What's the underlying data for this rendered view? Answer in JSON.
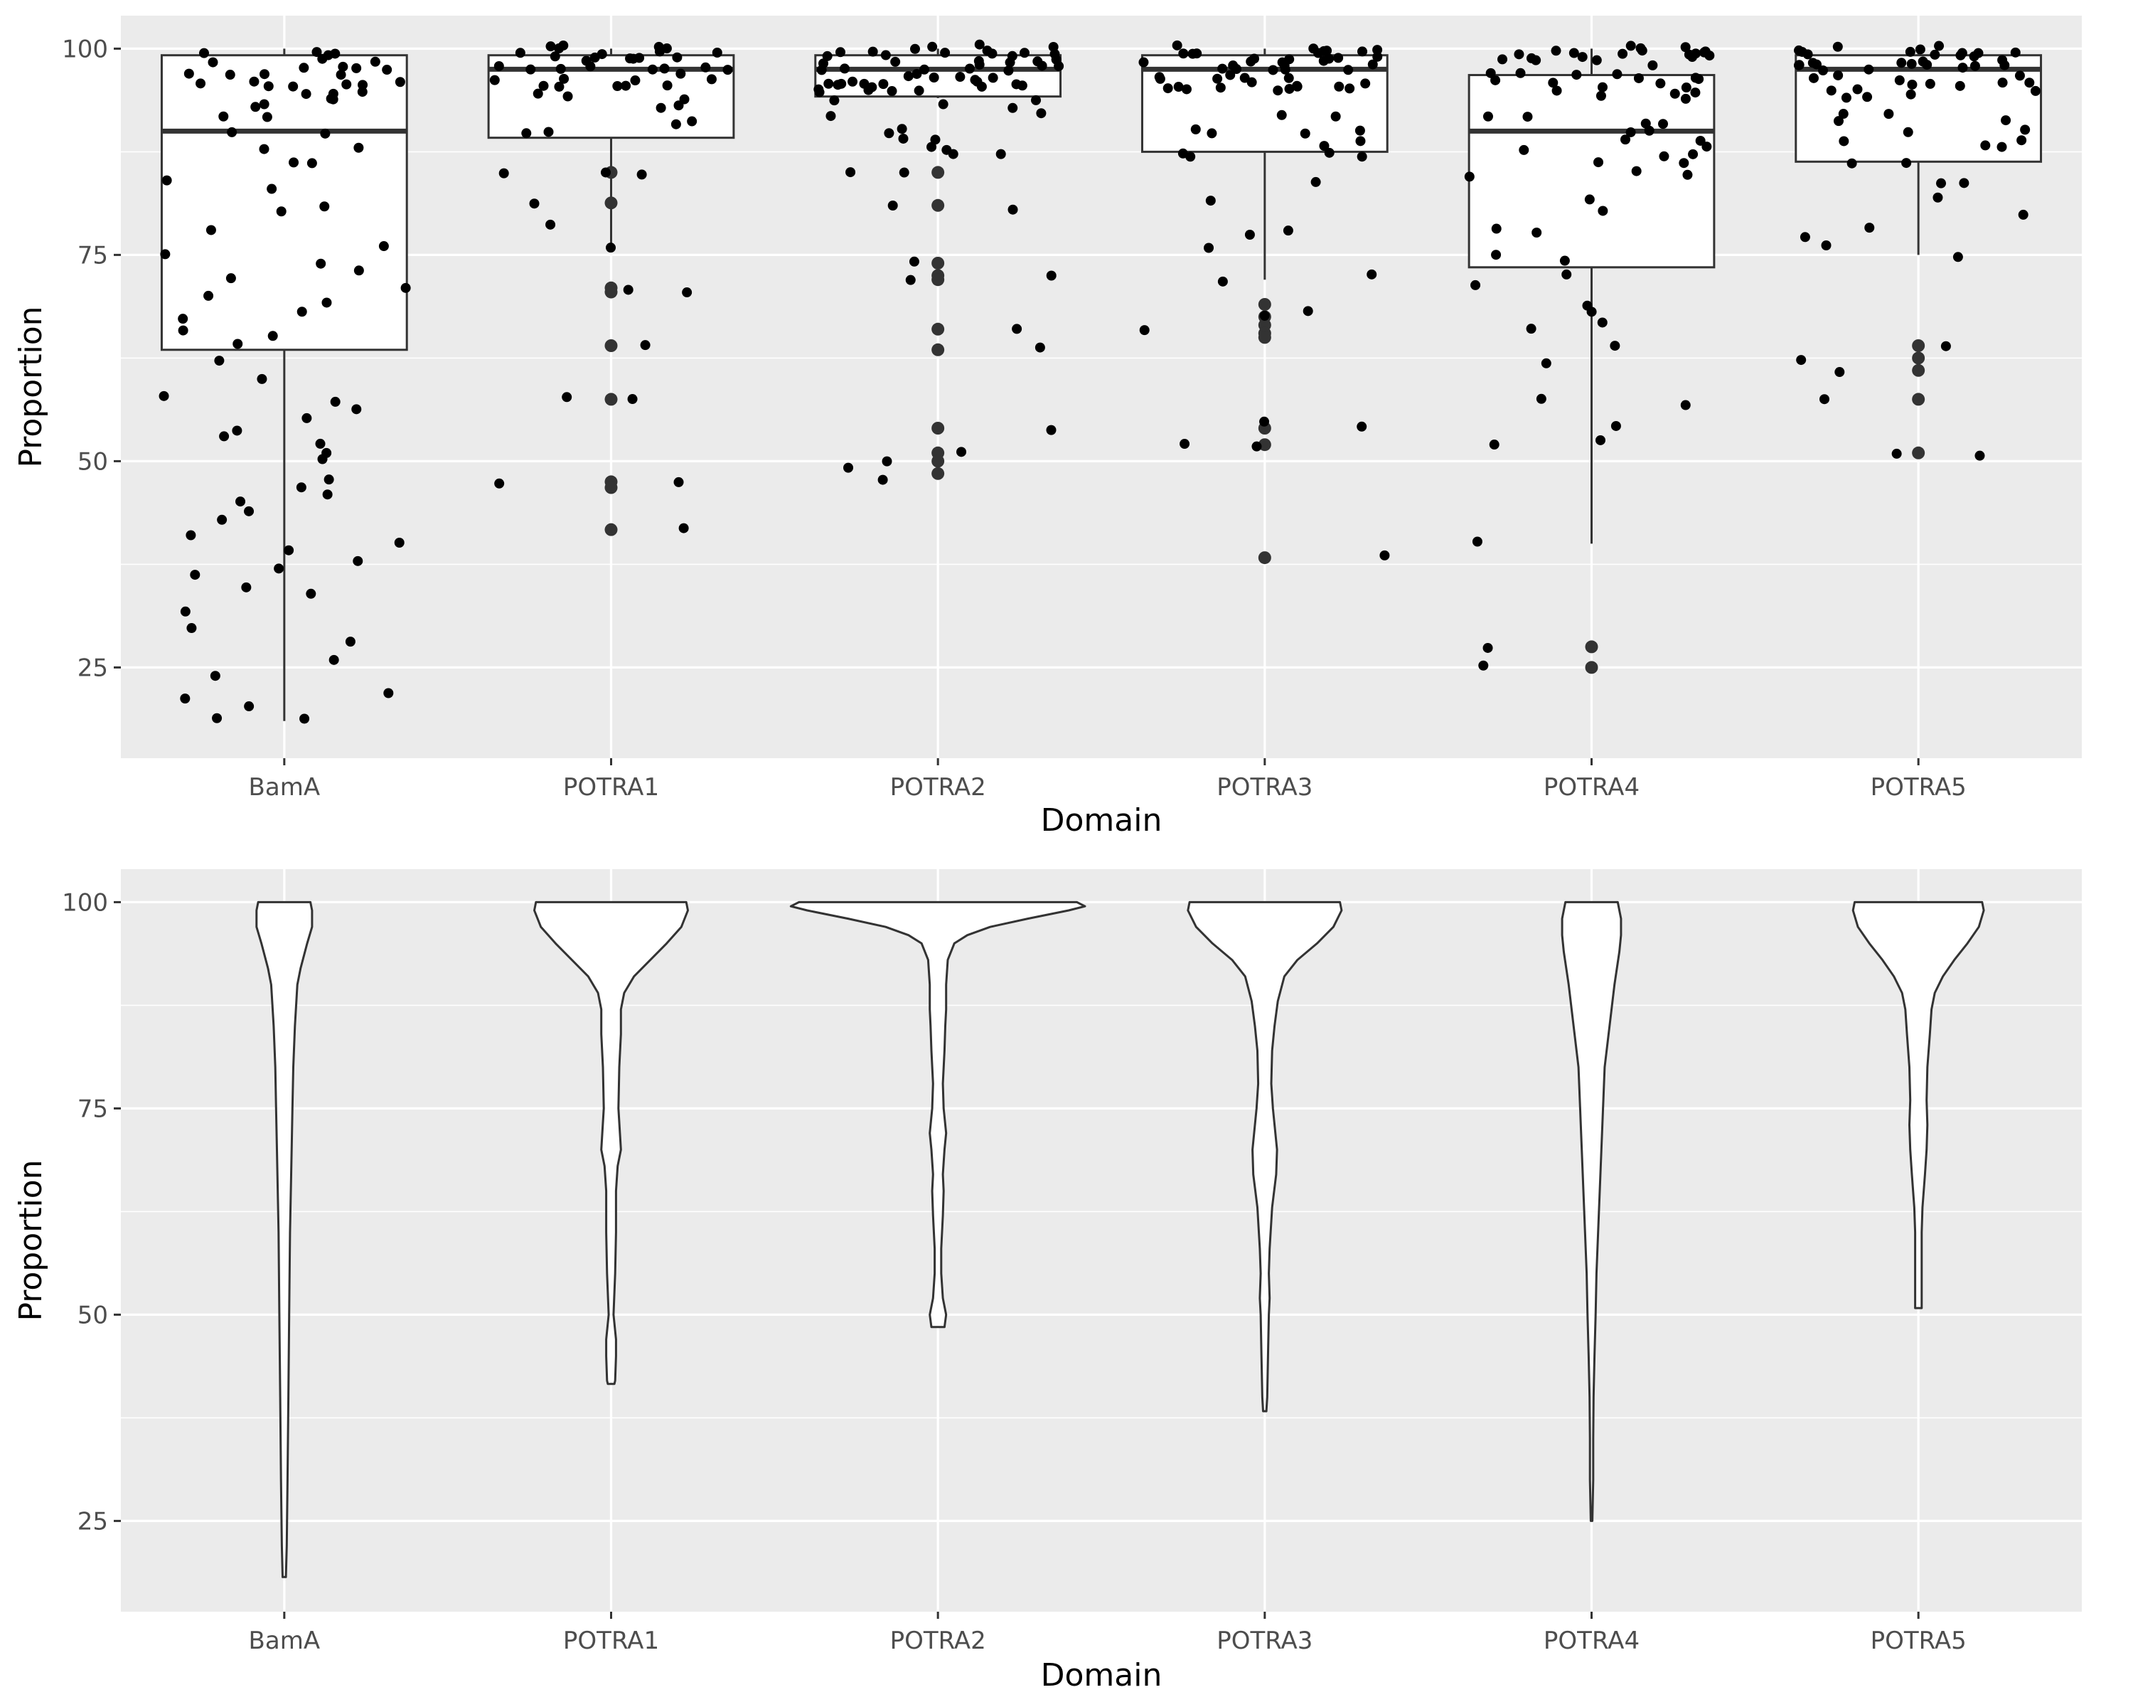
{
  "chart_data": [
    {
      "type": "box",
      "xlabel": "Domain",
      "ylabel": "Proportion",
      "categories": [
        "BamA",
        "POTRA1",
        "POTRA2",
        "POTRA3",
        "POTRA4",
        "POTRA5"
      ],
      "yticks": [
        25,
        50,
        75,
        100
      ],
      "ylim": [
        14,
        104
      ],
      "grid": true,
      "boxes": [
        {
          "category": "BamA",
          "lower_whisker": 18.5,
          "q1": 63.5,
          "median": 90.0,
          "q3": 99.2,
          "upper_whisker": 100
        },
        {
          "category": "POTRA1",
          "lower_whisker": 76.0,
          "q1": 89.2,
          "median": 97.5,
          "q3": 99.2,
          "upper_whisker": 100
        },
        {
          "category": "POTRA2",
          "lower_whisker": 94.0,
          "q1": 94.2,
          "median": 97.5,
          "q3": 99.2,
          "upper_whisker": 100
        },
        {
          "category": "POTRA3",
          "lower_whisker": 72.0,
          "q1": 87.5,
          "median": 97.5,
          "q3": 99.2,
          "upper_whisker": 100
        },
        {
          "category": "POTRA4",
          "lower_whisker": 40.0,
          "q1": 73.5,
          "median": 90.0,
          "q3": 96.8,
          "upper_whisker": 100
        },
        {
          "category": "POTRA5",
          "lower_whisker": 75.0,
          "q1": 86.3,
          "median": 97.5,
          "q3": 99.2,
          "upper_whisker": 100
        }
      ],
      "outliers": [
        {
          "category": "POTRA1",
          "values": [
            85,
            81.3,
            71,
            70.5,
            64,
            57.5,
            47.5,
            46.8,
            41.7
          ]
        },
        {
          "category": "POTRA2",
          "values": [
            85,
            81,
            74,
            72.5,
            72,
            66,
            63.5,
            54,
            51,
            50,
            48.5
          ]
        },
        {
          "category": "POTRA3",
          "values": [
            69,
            67.5,
            66.5,
            65.5,
            65,
            54,
            52,
            38.3
          ]
        },
        {
          "category": "POTRA4",
          "values": [
            27.5,
            25
          ]
        },
        {
          "category": "POTRA5",
          "values": [
            64,
            62.5,
            61,
            57.5,
            51
          ]
        }
      ],
      "jitter_points": [
        {
          "category": "BamA",
          "values": [
            99,
            98,
            97,
            96,
            95,
            94,
            93,
            92,
            90,
            88,
            86,
            84,
            83,
            81,
            80,
            78,
            76,
            75,
            74,
            73,
            72,
            71,
            70,
            69,
            68,
            67,
            66,
            65,
            64,
            62,
            60,
            58,
            57,
            56,
            55,
            54,
            53,
            52,
            51,
            50,
            48,
            47,
            46,
            45,
            44,
            43,
            41,
            40,
            39,
            38,
            37,
            36,
            35,
            34,
            32,
            30,
            28,
            26,
            24,
            22,
            21,
            20,
            19,
            18.5
          ]
        },
        {
          "category": "POTRA1",
          "values": [
            100,
            99.5,
            99,
            98,
            97,
            96,
            95,
            94,
            93,
            91,
            90,
            85,
            84.5,
            81.5,
            78.5,
            75.8,
            71,
            70.5,
            64,
            58,
            57.5,
            47.5,
            47,
            41.7
          ]
        },
        {
          "category": "POTRA2",
          "values": [
            100,
            99.5,
            99,
            98.5,
            98,
            97,
            96.5,
            96,
            95.5,
            95,
            94,
            93,
            92,
            90,
            89,
            88,
            87,
            85,
            81,
            80.5,
            74,
            72.5,
            72,
            66,
            63.5,
            54,
            51,
            50,
            49,
            48
          ]
        },
        {
          "category": "POTRA3",
          "values": [
            100,
            99.5,
            99,
            98.5,
            98,
            97,
            96,
            95.5,
            95,
            92,
            90,
            89.5,
            88.5,
            87.5,
            87,
            84,
            81.5,
            78,
            77.5,
            76,
            72.5,
            72,
            68,
            67.5,
            66,
            54.5,
            54,
            52,
            51.8,
            38.3
          ]
        },
        {
          "category": "POTRA4",
          "values": [
            100,
            99.5,
            99,
            98.5,
            97,
            96,
            95,
            94,
            92,
            91,
            90,
            89,
            88,
            87,
            86,
            85,
            84.5,
            82,
            80.5,
            78,
            77.5,
            75,
            74.5,
            72.5,
            71.5,
            69,
            68,
            67,
            66,
            64,
            62,
            57.5,
            57,
            54,
            52.5,
            52,
            40,
            27.5,
            25
          ]
        },
        {
          "category": "POTRA5",
          "values": [
            100,
            99.5,
            99,
            98.5,
            98,
            97,
            96,
            95,
            94,
            92,
            91.5,
            90,
            89,
            88,
            86,
            84,
            83.5,
            82,
            80,
            78.5,
            77,
            76,
            74.5,
            64,
            62.5,
            61,
            57.5,
            51,
            50.8
          ]
        }
      ]
    },
    {
      "type": "violin",
      "xlabel": "Domain",
      "ylabel": "Proportion",
      "categories": [
        "BamA",
        "POTRA1",
        "POTRA2",
        "POTRA3",
        "POTRA4",
        "POTRA5"
      ],
      "yticks": [
        25,
        50,
        75,
        100
      ],
      "ylim": [
        14,
        104
      ],
      "grid": true,
      "violins": [
        {
          "category": "BamA",
          "min": 18.2,
          "max": 100,
          "profile": [
            [
              100,
              0.16
            ],
            [
              99,
              0.17
            ],
            [
              97,
              0.17
            ],
            [
              95,
              0.14
            ],
            [
              92,
              0.1
            ],
            [
              90,
              0.08
            ],
            [
              85,
              0.065
            ],
            [
              80,
              0.055
            ],
            [
              75,
              0.05
            ],
            [
              70,
              0.045
            ],
            [
              60,
              0.035
            ],
            [
              50,
              0.03
            ],
            [
              40,
              0.025
            ],
            [
              30,
              0.02
            ],
            [
              22,
              0.015
            ],
            [
              18.2,
              0.01
            ]
          ]
        },
        {
          "category": "POTRA1",
          "min": 41.6,
          "max": 100,
          "profile": [
            [
              100,
              0.46
            ],
            [
              99,
              0.47
            ],
            [
              97,
              0.43
            ],
            [
              95,
              0.34
            ],
            [
              93,
              0.24
            ],
            [
              91,
              0.14
            ],
            [
              89,
              0.08
            ],
            [
              87,
              0.06
            ],
            [
              84,
              0.06
            ],
            [
              80,
              0.05
            ],
            [
              75,
              0.045
            ],
            [
              70,
              0.06
            ],
            [
              68,
              0.04
            ],
            [
              65,
              0.03
            ],
            [
              60,
              0.03
            ],
            [
              55,
              0.025
            ],
            [
              50,
              0.015
            ],
            [
              47,
              0.03
            ],
            [
              45,
              0.03
            ],
            [
              42,
              0.025
            ],
            [
              41.6,
              0.02
            ]
          ]
        },
        {
          "category": "POTRA2",
          "min": 48.5,
          "max": 100,
          "profile": [
            [
              100,
              0.85
            ],
            [
              99.5,
              0.9
            ],
            [
              99,
              0.8
            ],
            [
              98,
              0.55
            ],
            [
              97,
              0.32
            ],
            [
              96,
              0.18
            ],
            [
              95,
              0.1
            ],
            [
              93,
              0.06
            ],
            [
              90,
              0.05
            ],
            [
              87,
              0.05
            ],
            [
              85,
              0.045
            ],
            [
              82,
              0.04
            ],
            [
              78,
              0.03
            ],
            [
              75,
              0.035
            ],
            [
              72,
              0.05
            ],
            [
              70,
              0.04
            ],
            [
              67,
              0.03
            ],
            [
              65,
              0.035
            ],
            [
              62,
              0.03
            ],
            [
              58,
              0.02
            ],
            [
              55,
              0.02
            ],
            [
              52,
              0.03
            ],
            [
              50,
              0.05
            ],
            [
              48.5,
              0.04
            ]
          ]
        },
        {
          "category": "POTRA3",
          "min": 38.3,
          "max": 100,
          "profile": [
            [
              100,
              0.46
            ],
            [
              99,
              0.47
            ],
            [
              97,
              0.42
            ],
            [
              95,
              0.32
            ],
            [
              93,
              0.2
            ],
            [
              91,
              0.12
            ],
            [
              88,
              0.08
            ],
            [
              85,
              0.06
            ],
            [
              82,
              0.045
            ],
            [
              78,
              0.04
            ],
            [
              75,
              0.05
            ],
            [
              70,
              0.075
            ],
            [
              67,
              0.07
            ],
            [
              63,
              0.045
            ],
            [
              58,
              0.03
            ],
            [
              55,
              0.025
            ],
            [
              52,
              0.03
            ],
            [
              50,
              0.025
            ],
            [
              45,
              0.02
            ],
            [
              40,
              0.015
            ],
            [
              38.3,
              0.01
            ]
          ]
        },
        {
          "category": "POTRA4",
          "min": 25,
          "max": 100,
          "profile": [
            [
              100,
              0.16
            ],
            [
              98,
              0.18
            ],
            [
              96,
              0.18
            ],
            [
              94,
              0.17
            ],
            [
              90,
              0.14
            ],
            [
              85,
              0.11
            ],
            [
              80,
              0.08
            ],
            [
              75,
              0.07
            ],
            [
              70,
              0.06
            ],
            [
              65,
              0.05
            ],
            [
              60,
              0.04
            ],
            [
              55,
              0.03
            ],
            [
              50,
              0.025
            ],
            [
              45,
              0.018
            ],
            [
              40,
              0.012
            ],
            [
              35,
              0.01
            ],
            [
              30,
              0.01
            ],
            [
              25,
              0.005
            ]
          ]
        },
        {
          "category": "POTRA5",
          "min": 50.8,
          "max": 100,
          "profile": [
            [
              100,
              0.39
            ],
            [
              99,
              0.4
            ],
            [
              97,
              0.37
            ],
            [
              95,
              0.3
            ],
            [
              93,
              0.22
            ],
            [
              91,
              0.15
            ],
            [
              89,
              0.1
            ],
            [
              87,
              0.08
            ],
            [
              84,
              0.07
            ],
            [
              80,
              0.055
            ],
            [
              76,
              0.05
            ],
            [
              73,
              0.055
            ],
            [
              70,
              0.05
            ],
            [
              67,
              0.04
            ],
            [
              63,
              0.025
            ],
            [
              60,
              0.02
            ],
            [
              55,
              0.02
            ],
            [
              52,
              0.02
            ],
            [
              50.8,
              0.02
            ]
          ]
        }
      ]
    }
  ]
}
